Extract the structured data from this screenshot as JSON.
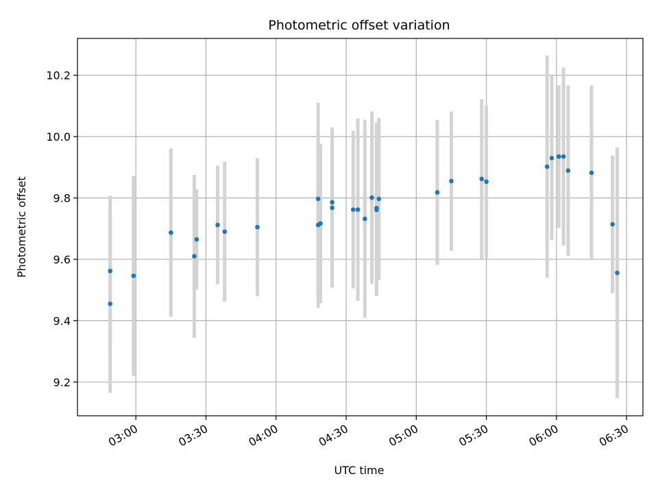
{
  "chart_data": {
    "type": "scatter",
    "title": "Photometric offset variation",
    "xlabel": "UTC time",
    "ylabel": "Photometric offset",
    "x_axis": "time",
    "xlim": [
      "02:35",
      "06:37"
    ],
    "ylim": [
      9.09,
      10.32
    ],
    "x_ticks": [
      "03:00",
      "03:30",
      "04:00",
      "04:30",
      "05:00",
      "05:30",
      "06:00",
      "06:30"
    ],
    "y_ticks": [
      9.2,
      9.4,
      9.6,
      9.8,
      10.0,
      10.2
    ],
    "grid": true,
    "colors": {
      "point": "#1f77b4",
      "errorbar": "#d3d3d3",
      "grid": "#b0b0b0"
    },
    "points": [
      {
        "x": "02:49",
        "y": 9.455,
        "err": 0.29
      },
      {
        "x": "02:49",
        "y": 9.562,
        "err": 0.245
      },
      {
        "x": "02:59",
        "y": 9.546,
        "err": 0.326
      },
      {
        "x": "03:15",
        "y": 9.687,
        "err": 0.274
      },
      {
        "x": "03:25",
        "y": 9.61,
        "err": 0.265
      },
      {
        "x": "03:26",
        "y": 9.665,
        "err": 0.163
      },
      {
        "x": "03:35",
        "y": 9.712,
        "err": 0.193
      },
      {
        "x": "03:38",
        "y": 9.69,
        "err": 0.228
      },
      {
        "x": "03:52",
        "y": 9.705,
        "err": 0.225
      },
      {
        "x": "04:18",
        "y": 9.797,
        "err": 0.313
      },
      {
        "x": "04:18",
        "y": 9.712,
        "err": 0.27
      },
      {
        "x": "04:19",
        "y": 9.717,
        "err": 0.26
      },
      {
        "x": "04:24",
        "y": 9.786,
        "err": 0.244
      },
      {
        "x": "04:24",
        "y": 9.768,
        "err": 0.26
      },
      {
        "x": "04:33",
        "y": 9.762,
        "err": 0.257
      },
      {
        "x": "04:35",
        "y": 9.762,
        "err": 0.297
      },
      {
        "x": "04:38",
        "y": 9.732,
        "err": 0.323
      },
      {
        "x": "04:41",
        "y": 9.801,
        "err": 0.281
      },
      {
        "x": "04:43",
        "y": 9.761,
        "err": 0.281
      },
      {
        "x": "04:43",
        "y": 9.767,
        "err": 0.277
      },
      {
        "x": "04:44",
        "y": 9.797,
        "err": 0.264
      },
      {
        "x": "05:09",
        "y": 9.818,
        "err": 0.236
      },
      {
        "x": "05:15",
        "y": 9.855,
        "err": 0.227
      },
      {
        "x": "05:28",
        "y": 9.862,
        "err": 0.26
      },
      {
        "x": "05:30",
        "y": 9.853,
        "err": 0.249
      },
      {
        "x": "05:56",
        "y": 9.902,
        "err": 0.362
      },
      {
        "x": "05:58",
        "y": 9.93,
        "err": 0.268
      },
      {
        "x": "06:01",
        "y": 9.935,
        "err": 0.232
      },
      {
        "x": "06:03",
        "y": 9.935,
        "err": 0.29
      },
      {
        "x": "06:05",
        "y": 9.889,
        "err": 0.277
      },
      {
        "x": "06:15",
        "y": 9.882,
        "err": 0.285
      },
      {
        "x": "06:24",
        "y": 9.714,
        "err": 0.224
      },
      {
        "x": "06:26",
        "y": 9.556,
        "err": 0.408
      }
    ]
  }
}
